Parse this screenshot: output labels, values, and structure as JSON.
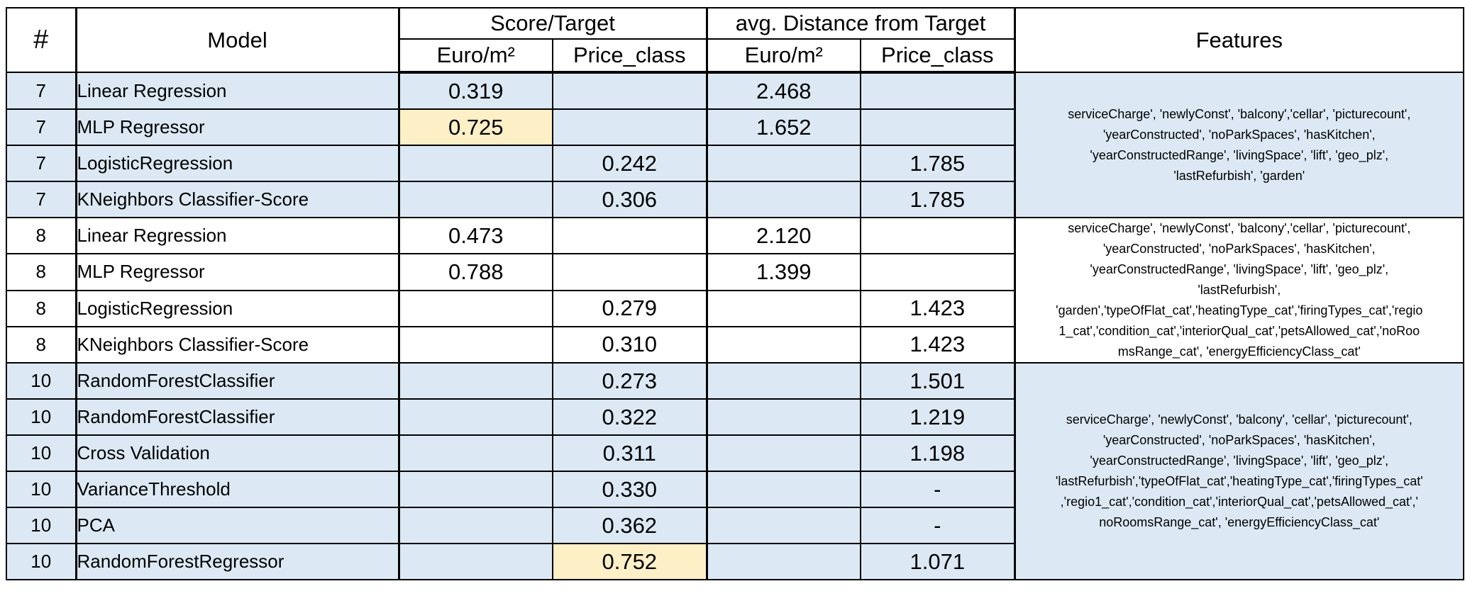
{
  "header": {
    "num": "#",
    "model": "Model",
    "score_group": "Score/Target",
    "distance_group": "avg. Distance from Target",
    "features": "Features",
    "sub": [
      "Euro/m²",
      "Price_class",
      "Euro/m²",
      "Price_class"
    ]
  },
  "rows": [
    {
      "num": "7",
      "model": "Linear Regression",
      "score_euro": "0.319",
      "score_price": "",
      "dist_euro": "2.468",
      "dist_price": ""
    },
    {
      "num": "7",
      "model": "MLP Regressor",
      "score_euro": "0.725",
      "score_price": "",
      "dist_euro": "1.652",
      "dist_price": ""
    },
    {
      "num": "7",
      "model": "LogisticRegression",
      "score_euro": "",
      "score_price": "0.242",
      "dist_euro": "",
      "dist_price": "1.785"
    },
    {
      "num": "7",
      "model": "KNeighbors Classifier-Score",
      "score_euro": "",
      "score_price": "0.306",
      "dist_euro": "",
      "dist_price": "1.785"
    },
    {
      "num": "8",
      "model": "Linear Regression",
      "score_euro": "0.473",
      "score_price": "",
      "dist_euro": "2.120",
      "dist_price": ""
    },
    {
      "num": "8",
      "model": "MLP Regressor",
      "score_euro": "0.788",
      "score_price": "",
      "dist_euro": "1.399",
      "dist_price": ""
    },
    {
      "num": "8",
      "model": "LogisticRegression",
      "score_euro": "",
      "score_price": "0.279",
      "dist_euro": "",
      "dist_price": "1.423"
    },
    {
      "num": "8",
      "model": "KNeighbors Classifier-Score",
      "score_euro": "",
      "score_price": "0.310",
      "dist_euro": "",
      "dist_price": "1.423"
    },
    {
      "num": "10",
      "model": "RandomForestClassifier",
      "score_euro": "",
      "score_price": "0.273",
      "dist_euro": "",
      "dist_price": "1.501"
    },
    {
      "num": "10",
      "model": "RandomForestClassifier",
      "score_euro": "",
      "score_price": "0.322",
      "dist_euro": "",
      "dist_price": "1.219"
    },
    {
      "num": "10",
      "model": "Cross Validation",
      "score_euro": "",
      "score_price": "0.311",
      "dist_euro": "",
      "dist_price": "1.198"
    },
    {
      "num": "10",
      "model": "VarianceThreshold",
      "score_euro": "",
      "score_price": "0.330",
      "dist_euro": "",
      "dist_price": "-"
    },
    {
      "num": "10",
      "model": "PCA",
      "score_euro": "",
      "score_price": "0.362",
      "dist_euro": "",
      "dist_price": "-"
    },
    {
      "num": "10",
      "model": "RandomForestRegressor",
      "score_euro": "",
      "score_price": "0.752",
      "dist_euro": "",
      "dist_price": "1.071"
    }
  ],
  "features": {
    "group7": [
      "serviceCharge', 'newlyConst', 'balcony','cellar', 'picturecount',",
      "'yearConstructed', 'noParkSpaces', 'hasKitchen',",
      "'yearConstructedRange', 'livingSpace', 'lift', 'geo_plz',",
      "'lastRefurbish', 'garden'"
    ],
    "group8": [
      "serviceCharge', 'newlyConst', 'balcony','cellar', 'picturecount',",
      "'yearConstructed', 'noParkSpaces', 'hasKitchen',",
      "'yearConstructedRange', 'livingSpace', 'lift', 'geo_plz',",
      "'lastRefurbish',",
      "'garden','typeOfFlat_cat','heatingType_cat','firingTypes_cat','regio",
      "1_cat','condition_cat','interiorQual_cat','petsAllowed_cat','noRoo",
      "msRange_cat', 'energyEfficiencyClass_cat'"
    ],
    "group10": [
      "serviceCharge', 'newlyConst', 'balcony', 'cellar', 'picturecount',",
      "'yearConstructed', 'noParkSpaces', 'hasKitchen',",
      "'yearConstructedRange', 'livingSpace', 'lift', 'geo_plz',",
      "'lastRefurbish','typeOfFlat_cat','heatingType_cat','firingTypes_cat'",
      ",'regio1_cat','condition_cat','interiorQual_cat','petsAllowed_cat','",
      "noRoomsRange_cat', 'energyEfficiencyClass_cat'"
    ]
  },
  "colors": {
    "row_blue": "#dce9f5",
    "row_white": "#ffffff",
    "highlight": "#fdefc6"
  }
}
